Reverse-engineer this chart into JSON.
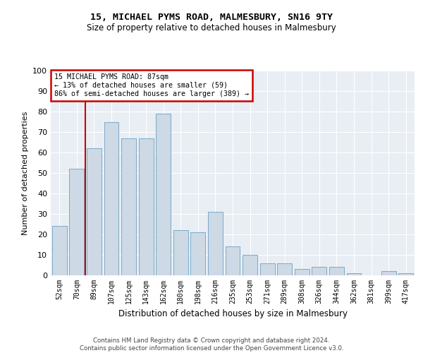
{
  "title": "15, MICHAEL PYMS ROAD, MALMESBURY, SN16 9TY",
  "subtitle": "Size of property relative to detached houses in Malmesbury",
  "xlabel": "Distribution of detached houses by size in Malmesbury",
  "ylabel": "Number of detached properties",
  "bar_labels": [
    "52sqm",
    "70sqm",
    "89sqm",
    "107sqm",
    "125sqm",
    "143sqm",
    "162sqm",
    "180sqm",
    "198sqm",
    "216sqm",
    "235sqm",
    "253sqm",
    "271sqm",
    "289sqm",
    "308sqm",
    "326sqm",
    "344sqm",
    "362sqm",
    "381sqm",
    "399sqm",
    "417sqm"
  ],
  "bar_values": [
    24,
    52,
    62,
    75,
    67,
    67,
    79,
    22,
    21,
    31,
    14,
    10,
    6,
    6,
    3,
    4,
    4,
    1,
    0,
    2,
    1
  ],
  "bar_color": "#cdd9e5",
  "bar_edge_color": "#7aaac8",
  "property_line_index": 2,
  "annotation_title": "15 MICHAEL PYMS ROAD: 87sqm",
  "annotation_line1": "← 13% of detached houses are smaller (59)",
  "annotation_line2": "86% of semi-detached houses are larger (389) →",
  "annotation_box_facecolor": "#ffffff",
  "annotation_box_edgecolor": "#cc0000",
  "vline_color": "#cc0000",
  "ylim": [
    0,
    100
  ],
  "yticks": [
    0,
    10,
    20,
    30,
    40,
    50,
    60,
    70,
    80,
    90,
    100
  ],
  "fig_facecolor": "#ffffff",
  "ax_facecolor": "#e8eef4",
  "grid_color": "#ffffff",
  "footer_line1": "Contains HM Land Registry data © Crown copyright and database right 2024.",
  "footer_line2": "Contains public sector information licensed under the Open Government Licence v3.0."
}
